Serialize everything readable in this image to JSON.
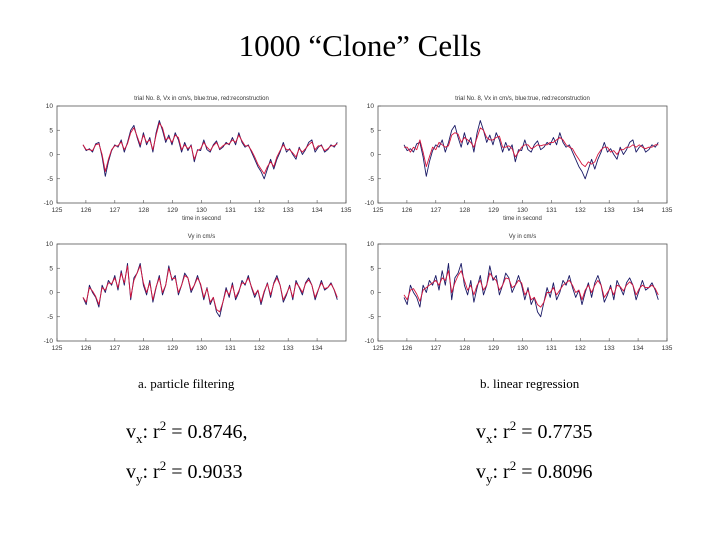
{
  "slide_title": "1000 “Clone” Cells",
  "colors": {
    "true_series": "#1a1a66",
    "reconstruction_series": "#d4143c",
    "frame": "#555555"
  },
  "captions": {
    "left": "a. particle filtering",
    "right": "b. linear regression"
  },
  "stats": {
    "left_vx": {
      "var": "v",
      "sub": "x",
      "pre": ": r",
      "sup": "2",
      "post": " = 0.8746,"
    },
    "left_vy": {
      "var": "v",
      "sub": "y",
      "pre": ": r",
      "sup": "2",
      "post": " = 0.9033"
    },
    "right_vx": {
      "var": "v",
      "sub": "x",
      "pre": ": r",
      "sup": "2",
      "post": " = 0.7735"
    },
    "right_vy": {
      "var": "v",
      "sub": "y",
      "pre": ": r",
      "sup": "2",
      "post": " = 0.8096"
    }
  },
  "chart_data": [
    {
      "type": "line",
      "title": "trial No. 8, Vx in cm/s, blue:true, red:reconstruction",
      "xlabel": "time in second",
      "ylabel": "",
      "xlim": [
        125,
        135
      ],
      "ylim": [
        -10,
        10
      ],
      "xticks": [
        125,
        126,
        127,
        128,
        129,
        130,
        131,
        132,
        133,
        134,
        135
      ],
      "yticks": [
        10,
        5,
        0,
        -5,
        -10
      ],
      "x_start": 125.9,
      "x_end": 134.7,
      "series": [
        {
          "role": "true",
          "values": [
            2,
            0.8,
            1.2,
            0.5,
            2.2,
            2.5,
            -0.5,
            -4.5,
            -1.5,
            0.8,
            2.0,
            1.5,
            3.0,
            0.5,
            2.5,
            5.0,
            6.0,
            3.5,
            1.5,
            4.5,
            2.0,
            3.5,
            0.5,
            4.5,
            7.0,
            5.0,
            2.5,
            4.0,
            2.0,
            4.5,
            3.0,
            0.5,
            2.5,
            0.8,
            2.0,
            -1.5,
            1.0,
            0.8,
            3.0,
            1.0,
            0.5,
            2.0,
            2.8,
            1.0,
            1.5,
            2.5,
            2.0,
            3.5,
            2.0,
            4.5,
            2.5,
            1.5,
            2.0,
            0.5,
            -1.0,
            -2.5,
            -3.5,
            -5.0,
            -3.0,
            -1.0,
            -3.0,
            -1.0,
            0.5,
            2.5,
            0.5,
            1.2,
            0.0,
            -1.0,
            1.5,
            0.0,
            1.0,
            2.5,
            3.0,
            0.5,
            1.5,
            2.0,
            0.5,
            1.0,
            2.0,
            1.5,
            2.5
          ]
        },
        {
          "role": "reconstruction",
          "values": [
            2,
            1.0,
            1.0,
            0.8,
            2.0,
            2.2,
            0.0,
            -3.5,
            -1.0,
            1.0,
            1.8,
            1.8,
            2.6,
            1.0,
            2.2,
            4.5,
            5.5,
            3.8,
            2.0,
            4.0,
            2.5,
            3.0,
            1.0,
            4.0,
            6.5,
            5.5,
            3.0,
            3.5,
            2.5,
            4.0,
            3.5,
            1.0,
            2.0,
            1.2,
            1.8,
            -1.0,
            0.8,
            1.2,
            2.5,
            1.5,
            0.8,
            1.8,
            2.5,
            1.2,
            1.8,
            2.2,
            2.2,
            3.0,
            2.5,
            4.0,
            2.8,
            1.8,
            1.8,
            0.8,
            -0.5,
            -2.0,
            -3.0,
            -4.0,
            -2.5,
            -1.5,
            -2.5,
            -0.5,
            0.8,
            2.0,
            1.0,
            1.0,
            0.3,
            -0.5,
            1.2,
            0.5,
            1.2,
            2.0,
            2.6,
            1.0,
            1.8,
            1.8,
            0.8,
            1.2,
            1.8,
            1.8,
            2.2
          ]
        }
      ]
    },
    {
      "type": "line",
      "title": "trial No. 8, Vx in cm/s, blue:true, red:reconstruction",
      "xlabel": "time in second",
      "ylabel": "",
      "xlim": [
        125,
        135
      ],
      "ylim": [
        -10,
        10
      ],
      "xticks": [
        125,
        126,
        127,
        128,
        129,
        130,
        131,
        132,
        133,
        134,
        135
      ],
      "yticks": [
        10,
        5,
        0,
        -5,
        -10
      ],
      "x_start": 125.9,
      "x_end": 134.7,
      "series": [
        {
          "role": "true",
          "values": [
            2,
            0.8,
            1.2,
            0.5,
            2.2,
            2.5,
            -0.5,
            -4.5,
            -1.5,
            0.8,
            2.0,
            1.5,
            3.0,
            0.5,
            2.5,
            5.0,
            6.0,
            3.5,
            1.5,
            4.5,
            2.0,
            3.5,
            0.5,
            4.5,
            7.0,
            5.0,
            2.5,
            4.0,
            2.0,
            4.5,
            3.0,
            0.5,
            2.5,
            0.8,
            2.0,
            -1.5,
            1.0,
            0.8,
            3.0,
            1.0,
            0.5,
            2.0,
            2.8,
            1.0,
            1.5,
            2.5,
            2.0,
            3.5,
            2.0,
            4.5,
            2.5,
            1.5,
            2.0,
            0.5,
            -1.0,
            -2.5,
            -3.5,
            -5.0,
            -3.0,
            -1.0,
            -3.0,
            -1.0,
            0.5,
            2.5,
            0.5,
            1.2,
            0.0,
            -1.0,
            1.5,
            0.0,
            1.0,
            2.5,
            3.0,
            0.5,
            1.5,
            2.0,
            0.5,
            1.0,
            2.0,
            1.5,
            2.5
          ]
        },
        {
          "role": "reconstruction",
          "values": [
            1.5,
            1.5,
            0.5,
            1.5,
            1.0,
            3.0,
            0.5,
            -2.5,
            -0.5,
            1.5,
            1.0,
            2.5,
            2.0,
            1.5,
            1.8,
            4.0,
            4.5,
            4.2,
            2.5,
            3.5,
            3.0,
            2.5,
            1.5,
            3.5,
            5.5,
            5.0,
            3.5,
            3.0,
            3.0,
            3.5,
            3.8,
            1.5,
            1.5,
            1.8,
            1.2,
            -0.5,
            0.5,
            1.5,
            2.0,
            2.0,
            1.2,
            1.5,
            2.0,
            1.8,
            2.0,
            2.0,
            2.5,
            2.5,
            3.0,
            3.5,
            3.0,
            2.0,
            1.5,
            1.2,
            0.0,
            -1.0,
            -2.0,
            -2.5,
            -1.5,
            -2.0,
            -1.5,
            0.0,
            1.0,
            1.5,
            1.5,
            0.5,
            0.8,
            0.0,
            1.0,
            1.0,
            1.5,
            1.5,
            2.0,
            1.5,
            2.0,
            1.5,
            1.2,
            1.5,
            1.5,
            2.0,
            2.0
          ]
        }
      ]
    },
    {
      "type": "line",
      "title": "Vy in cm/s",
      "xlabel": "",
      "ylabel": "",
      "xlim": [
        125,
        135
      ],
      "ylim": [
        -10,
        10
      ],
      "xticks": [
        125,
        126,
        127,
        128,
        129,
        130,
        131,
        132,
        133,
        134
      ],
      "yticks": [
        10,
        5,
        0,
        -5,
        -10
      ],
      "x_start": 125.9,
      "x_end": 134.7,
      "series": [
        {
          "role": "true",
          "values": [
            -1.0,
            -2.5,
            1.5,
            0.0,
            -1.0,
            -3.0,
            1.5,
            0.0,
            2.5,
            1.5,
            3.5,
            0.5,
            4.5,
            1.5,
            6.0,
            -1.5,
            3.0,
            4.0,
            6.0,
            1.5,
            -0.5,
            2.5,
            -2.0,
            1.0,
            3.5,
            -0.5,
            1.5,
            5.5,
            2.5,
            3.5,
            -0.5,
            1.5,
            4.0,
            3.0,
            0.0,
            1.5,
            3.5,
            1.5,
            -1.5,
            1.0,
            -2.5,
            -1.0,
            -4.0,
            -5.0,
            -2.0,
            1.0,
            -1.0,
            2.0,
            -1.5,
            0.0,
            2.5,
            1.5,
            3.5,
            1.0,
            -1.0,
            0.5,
            -2.5,
            0.0,
            2.0,
            -1.0,
            2.0,
            3.5,
            1.5,
            -2.0,
            -0.5,
            1.5,
            -1.5,
            2.5,
            1.0,
            -0.5,
            2.0,
            3.0,
            1.5,
            -1.5,
            0.5,
            2.5,
            0.5,
            1.0,
            2.0,
            0.5,
            -1.5
          ]
        },
        {
          "role": "reconstruction",
          "values": [
            -1.0,
            -2.0,
            1.0,
            0.3,
            -0.8,
            -2.5,
            1.0,
            0.5,
            2.0,
            1.8,
            3.0,
            1.0,
            4.0,
            2.0,
            5.5,
            -1.0,
            2.5,
            4.0,
            5.5,
            2.0,
            0.0,
            2.0,
            -1.5,
            1.2,
            3.0,
            0.0,
            1.5,
            5.0,
            2.8,
            3.0,
            0.0,
            1.5,
            3.5,
            3.0,
            0.5,
            1.5,
            3.0,
            1.8,
            -1.0,
            0.8,
            -2.0,
            -1.0,
            -3.5,
            -4.0,
            -2.0,
            0.5,
            -0.5,
            1.5,
            -1.0,
            0.3,
            2.0,
            1.8,
            3.0,
            1.2,
            -0.5,
            0.5,
            -2.0,
            0.3,
            1.8,
            -0.5,
            1.8,
            3.0,
            1.5,
            -1.5,
            -0.2,
            1.2,
            -1.0,
            2.0,
            1.2,
            0.0,
            1.8,
            2.6,
            1.5,
            -1.0,
            0.6,
            2.0,
            0.8,
            1.0,
            1.8,
            0.6,
            -1.0
          ]
        }
      ]
    },
    {
      "type": "line",
      "title": "Vy in cm/s",
      "xlabel": "",
      "ylabel": "",
      "xlim": [
        125,
        135
      ],
      "ylim": [
        -10,
        10
      ],
      "xticks": [
        125,
        126,
        127,
        128,
        129,
        130,
        131,
        132,
        133,
        134,
        135
      ],
      "yticks": [
        10,
        5,
        0,
        -5,
        -10
      ],
      "x_start": 125.9,
      "x_end": 134.7,
      "series": [
        {
          "role": "true",
          "values": [
            -1.0,
            -2.5,
            1.5,
            0.0,
            -1.0,
            -3.0,
            1.5,
            0.0,
            2.5,
            1.5,
            3.5,
            0.5,
            4.5,
            1.5,
            6.0,
            -1.5,
            3.0,
            4.0,
            6.0,
            1.5,
            -0.5,
            2.5,
            -2.0,
            1.0,
            3.5,
            -0.5,
            1.5,
            5.5,
            2.5,
            3.5,
            -0.5,
            1.5,
            4.0,
            3.0,
            0.0,
            1.5,
            3.5,
            1.5,
            -1.5,
            1.0,
            -2.5,
            -1.0,
            -4.0,
            -5.0,
            -2.0,
            1.0,
            -1.0,
            2.0,
            -1.5,
            0.0,
            2.5,
            1.5,
            3.5,
            1.0,
            -1.0,
            0.5,
            -2.5,
            0.0,
            2.0,
            -1.0,
            2.0,
            3.5,
            1.5,
            -2.0,
            -0.5,
            1.5,
            -1.5,
            2.5,
            1.0,
            -0.5,
            2.0,
            3.0,
            1.5,
            -1.5,
            0.5,
            2.5,
            0.5,
            1.0,
            2.0,
            0.5,
            -1.5
          ]
        },
        {
          "role": "reconstruction",
          "values": [
            -0.5,
            -1.5,
            0.5,
            0.8,
            -0.3,
            -1.8,
            0.5,
            1.0,
            1.5,
            2.0,
            2.5,
            1.5,
            3.0,
            2.5,
            4.5,
            0.0,
            2.0,
            3.5,
            4.5,
            2.5,
            0.5,
            1.5,
            -0.5,
            1.5,
            2.5,
            0.5,
            1.5,
            4.0,
            3.0,
            2.5,
            0.5,
            1.5,
            3.0,
            2.8,
            1.0,
            1.5,
            2.5,
            2.0,
            -0.5,
            0.5,
            -1.5,
            -1.0,
            -2.5,
            -3.0,
            -2.0,
            0.0,
            0.0,
            1.0,
            -0.5,
            0.5,
            1.5,
            2.0,
            2.5,
            1.5,
            0.0,
            0.5,
            -1.5,
            0.5,
            1.5,
            0.0,
            1.5,
            2.5,
            1.5,
            -1.0,
            0.0,
            1.0,
            -0.5,
            1.5,
            1.2,
            0.3,
            1.5,
            2.2,
            1.5,
            -0.5,
            0.8,
            1.5,
            1.0,
            1.0,
            1.5,
            0.8,
            -0.5
          ]
        }
      ]
    }
  ]
}
